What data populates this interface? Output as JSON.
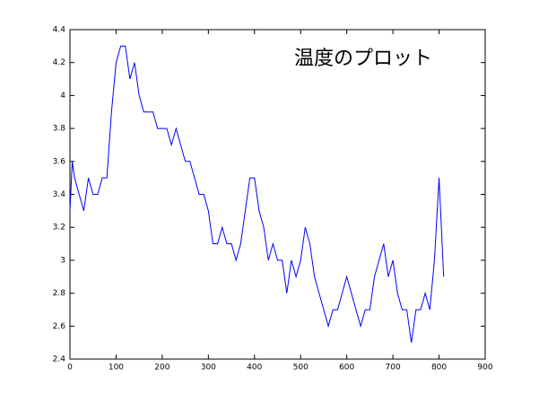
{
  "chart_data": {
    "type": "line",
    "title": "温度のプロット",
    "x": [
      0,
      5,
      10,
      20,
      30,
      40,
      50,
      60,
      70,
      80,
      90,
      100,
      110,
      120,
      130,
      140,
      150,
      160,
      170,
      180,
      190,
      200,
      210,
      220,
      230,
      240,
      250,
      260,
      270,
      280,
      290,
      300,
      310,
      320,
      330,
      340,
      350,
      360,
      370,
      380,
      390,
      400,
      410,
      420,
      430,
      440,
      450,
      460,
      470,
      480,
      490,
      500,
      510,
      520,
      530,
      540,
      550,
      560,
      570,
      580,
      590,
      600,
      610,
      620,
      630,
      640,
      650,
      660,
      670,
      680,
      690,
      700,
      710,
      720,
      730,
      740,
      750,
      760,
      770,
      780,
      790,
      800,
      810
    ],
    "series": [
      {
        "color": "#0000ff",
        "values": [
          3.3,
          3.6,
          3.5,
          3.4,
          3.3,
          3.5,
          3.4,
          3.4,
          3.5,
          3.5,
          3.9,
          4.2,
          4.3,
          4.3,
          4.1,
          4.2,
          4.0,
          3.9,
          3.9,
          3.9,
          3.8,
          3.8,
          3.8,
          3.7,
          3.8,
          3.7,
          3.6,
          3.6,
          3.5,
          3.4,
          3.4,
          3.3,
          3.1,
          3.1,
          3.2,
          3.1,
          3.1,
          3.0,
          3.1,
          3.3,
          3.5,
          3.5,
          3.3,
          3.2,
          3.0,
          3.1,
          3.0,
          3.0,
          2.8,
          3.0,
          2.9,
          3.0,
          3.2,
          3.1,
          2.9,
          2.8,
          2.7,
          2.6,
          2.7,
          2.7,
          2.8,
          2.9,
          2.8,
          2.7,
          2.6,
          2.7,
          2.7,
          2.9,
          3.0,
          3.1,
          2.9,
          3.0,
          2.8,
          2.7,
          2.7,
          2.5,
          2.7,
          2.7,
          2.8,
          2.7,
          3.0,
          3.5,
          2.9
        ]
      }
    ],
    "xlim": [
      0,
      900
    ],
    "xticks": [
      0,
      100,
      200,
      300,
      400,
      500,
      600,
      700,
      800,
      900
    ],
    "ylim": [
      2.4,
      4.4
    ],
    "yticks": [
      2.4,
      2.6,
      2.8,
      3,
      3.2,
      3.4,
      3.6,
      3.8,
      4,
      4.2,
      4.4
    ]
  }
}
